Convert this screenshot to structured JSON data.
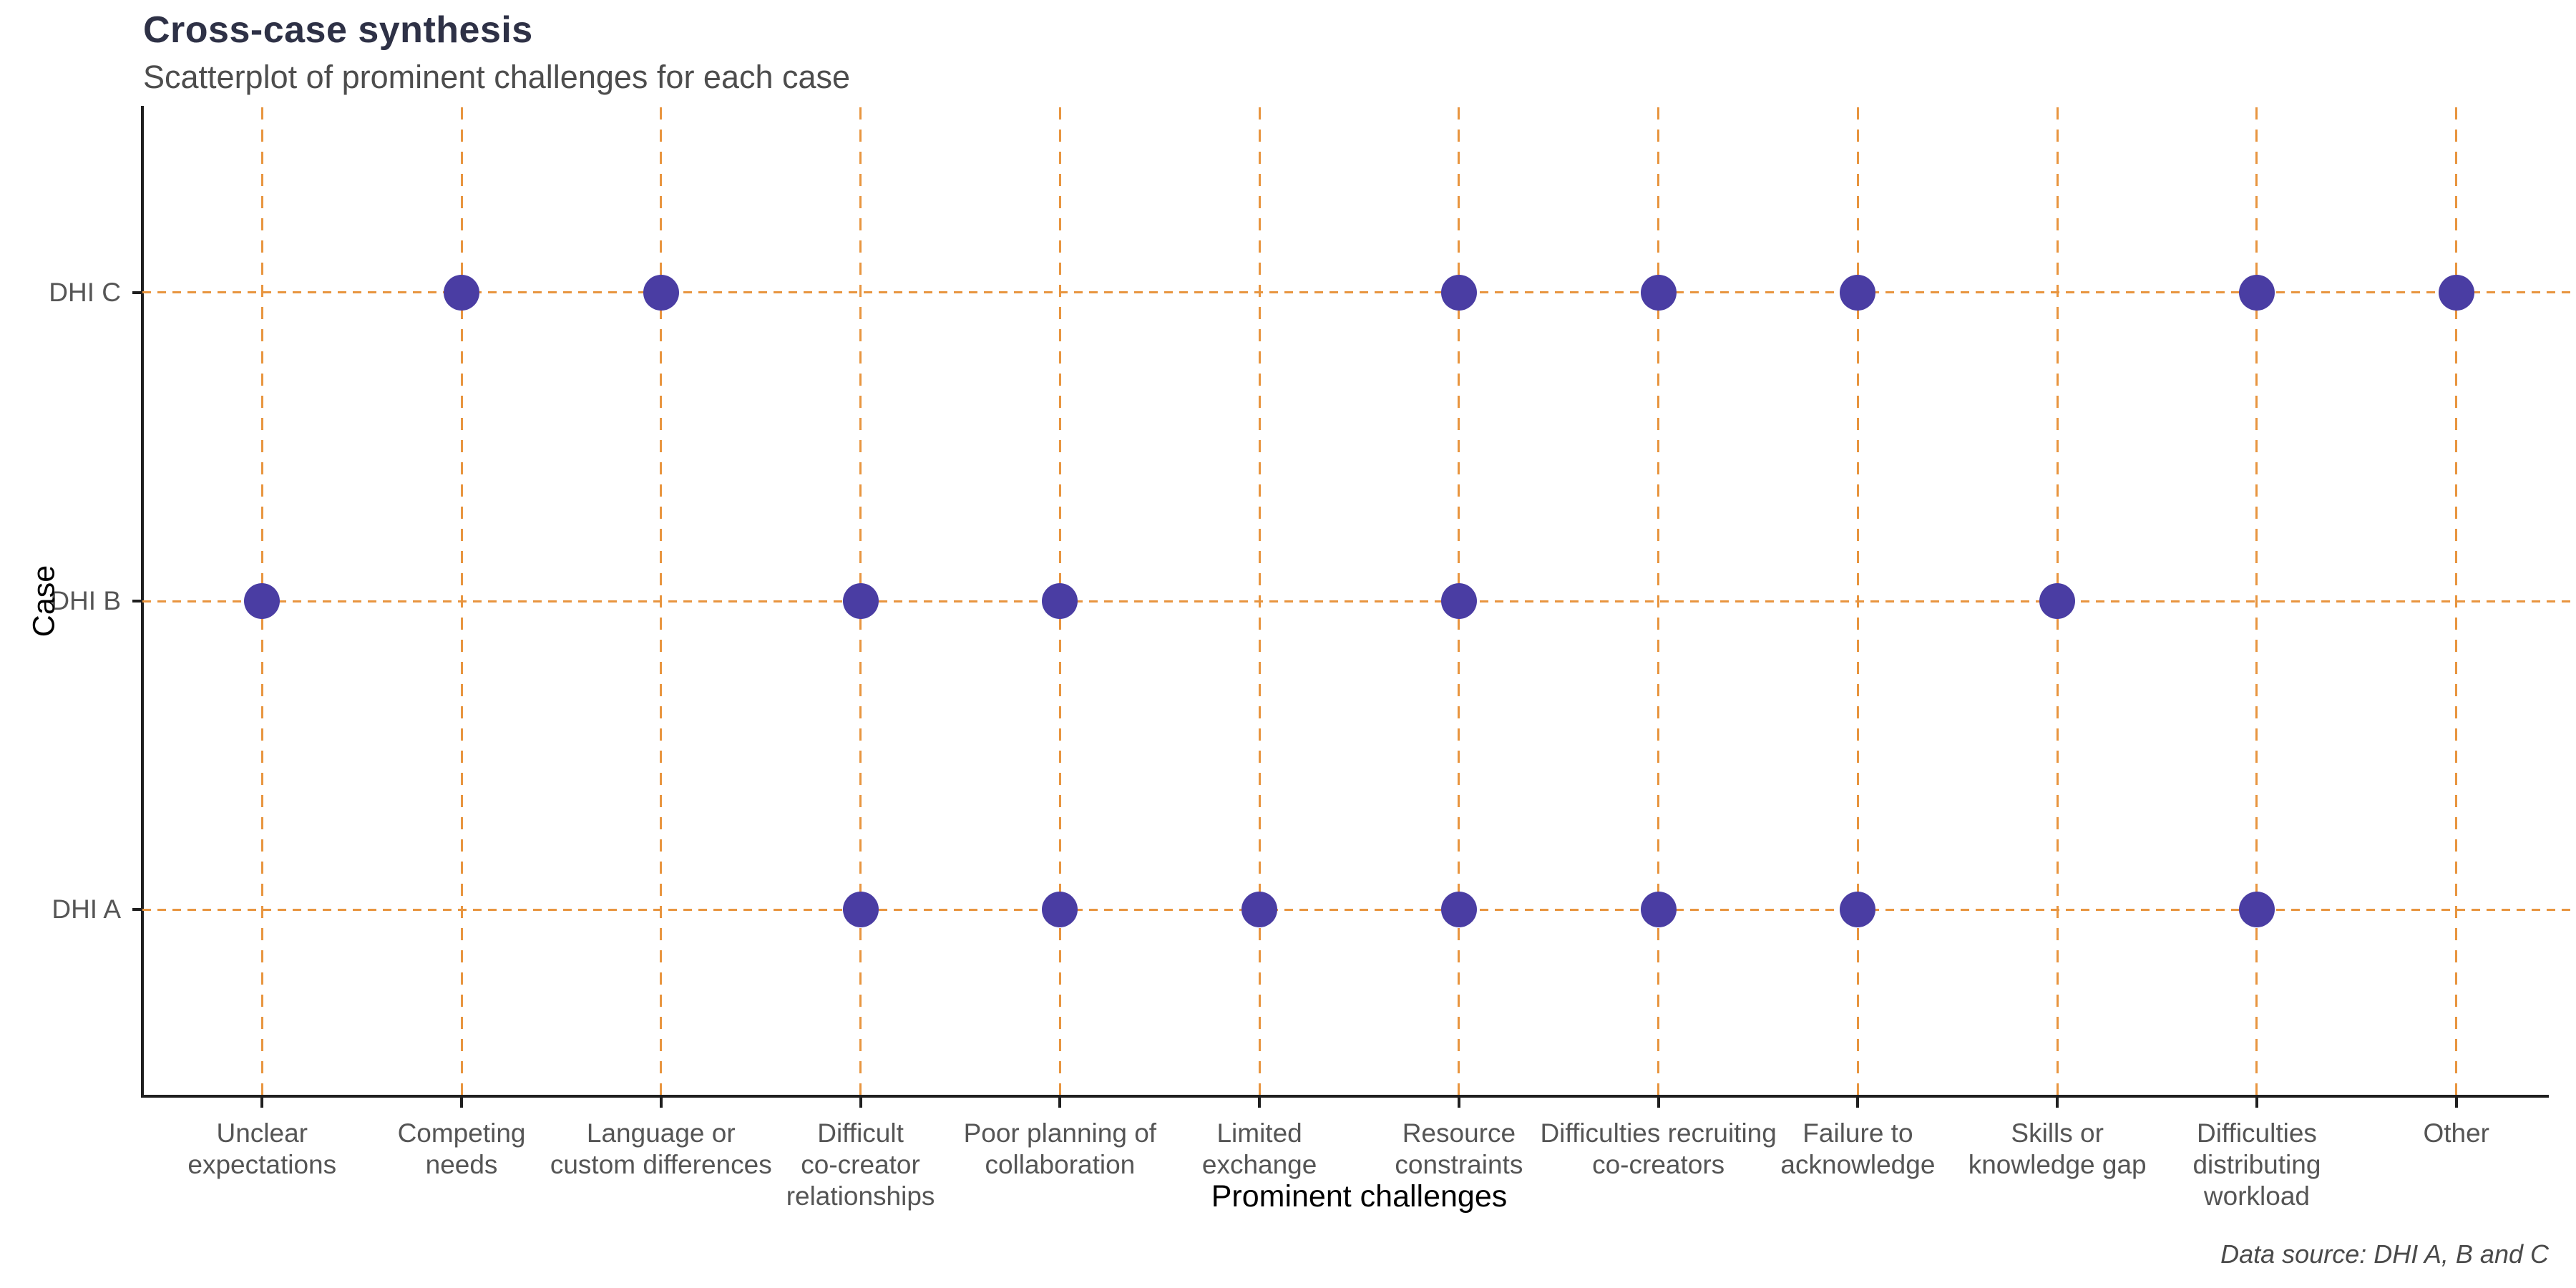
{
  "header": {
    "title": "Cross-case synthesis",
    "subtitle": "Scatterplot of prominent challenges for each case"
  },
  "caption": "Data source: DHI A, B and C",
  "chart_data": {
    "type": "scatter",
    "title": "Cross-case synthesis",
    "subtitle": "Scatterplot of prominent challenges for each case",
    "xlabel": "Prominent challenges",
    "ylabel": "Case",
    "legend": "none",
    "grid": "dashed orange gridlines on both axes",
    "x_categories": [
      {
        "name": "Unclear expectations",
        "lines": "Unclear\nexpectations"
      },
      {
        "name": "Competing needs",
        "lines": "Competing\nneeds"
      },
      {
        "name": "Language or custom differences",
        "lines": "Language or\ncustom differences"
      },
      {
        "name": "Difficult co-creator relationships",
        "lines": "Difficult\nco-creator\nrelationships"
      },
      {
        "name": "Poor planning of collaboration",
        "lines": "Poor planning of\ncollaboration"
      },
      {
        "name": "Limited exchange",
        "lines": "Limited\nexchange"
      },
      {
        "name": "Resource constraints",
        "lines": "Resource\nconstraints"
      },
      {
        "name": "Difficulties recruiting co-creators",
        "lines": "Difficulties recruiting\nco-creators"
      },
      {
        "name": "Failure to acknowledge",
        "lines": "Failure to\nacknowledge"
      },
      {
        "name": "Skills or knowledge gap",
        "lines": "Skills or\nknowledge gap"
      },
      {
        "name": "Difficulties distributing workload",
        "lines": "Difficulties\ndistributing\nworkload"
      },
      {
        "name": "Other",
        "lines": "Other"
      }
    ],
    "y_categories": [
      "DHI A",
      "DHI B",
      "DHI C"
    ],
    "points": [
      {
        "case": "DHI C",
        "challenge": "Competing needs"
      },
      {
        "case": "DHI C",
        "challenge": "Language or custom differences"
      },
      {
        "case": "DHI C",
        "challenge": "Resource constraints"
      },
      {
        "case": "DHI C",
        "challenge": "Difficulties recruiting co-creators"
      },
      {
        "case": "DHI C",
        "challenge": "Failure to acknowledge"
      },
      {
        "case": "DHI C",
        "challenge": "Difficulties distributing workload"
      },
      {
        "case": "DHI C",
        "challenge": "Other"
      },
      {
        "case": "DHI B",
        "challenge": "Unclear expectations"
      },
      {
        "case": "DHI B",
        "challenge": "Difficult co-creator relationships"
      },
      {
        "case": "DHI B",
        "challenge": "Poor planning of collaboration"
      },
      {
        "case": "DHI B",
        "challenge": "Resource constraints"
      },
      {
        "case": "DHI B",
        "challenge": "Skills or knowledge gap"
      },
      {
        "case": "DHI A",
        "challenge": "Difficult co-creator relationships"
      },
      {
        "case": "DHI A",
        "challenge": "Poor planning of collaboration"
      },
      {
        "case": "DHI A",
        "challenge": "Limited exchange"
      },
      {
        "case": "DHI A",
        "challenge": "Resource constraints"
      },
      {
        "case": "DHI A",
        "challenge": "Difficulties recruiting co-creators"
      },
      {
        "case": "DHI A",
        "challenge": "Failure to acknowledge"
      },
      {
        "case": "DHI A",
        "challenge": "Difficulties distributing workload"
      }
    ],
    "colors": {
      "point": "#4A3DA3",
      "grid": "#E8953F",
      "axis": "#1F1F1F",
      "title": "#2E3146",
      "subtitle": "#4D4D4D",
      "tick_label": "#555555",
      "caption": "#4A4A4A"
    }
  }
}
